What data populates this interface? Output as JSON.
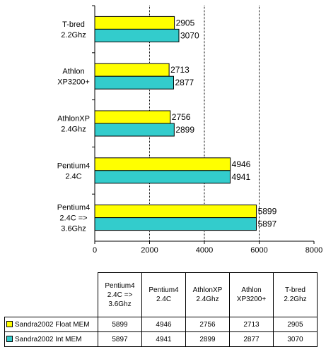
{
  "chart_data": {
    "type": "bar",
    "orientation": "horizontal",
    "categories": [
      [
        "T-bred",
        "2.2Ghz"
      ],
      [
        "Athlon",
        "XP3200+"
      ],
      [
        "AthlonXP",
        "2.4Ghz"
      ],
      [
        "Pentium4",
        "2.4C"
      ],
      [
        "Pentium4",
        "2.4C =>",
        "3.6Ghz"
      ]
    ],
    "series": [
      {
        "name": "Sandra2002 Float MEM",
        "color": "#ffff00",
        "values": [
          2905,
          2713,
          2756,
          4946,
          5899
        ]
      },
      {
        "name": "Sandra2002 Int MEM",
        "color": "#33cccc",
        "values": [
          3070,
          2877,
          2899,
          4941,
          5897
        ]
      }
    ],
    "xlim": [
      0,
      8000
    ],
    "xticks": [
      0,
      2000,
      4000,
      6000,
      8000
    ],
    "grid": "vertical dashed",
    "legend": "data table below chart"
  },
  "table": {
    "columns": [
      [
        "Pentium4",
        "2.4C =>",
        "3.6Ghz"
      ],
      [
        "Pentium4",
        "2.4C"
      ],
      [
        "AthlonXP",
        "2.4Ghz"
      ],
      [
        "Athlon",
        "XP3200+"
      ],
      [
        "T-bred",
        "2.2Ghz"
      ]
    ],
    "rows": [
      {
        "label": "Sandra2002 Float MEM",
        "color": "#ffff00",
        "values": [
          "5899",
          "4946",
          "2756",
          "2713",
          "2905"
        ]
      },
      {
        "label": "Sandra2002 Int MEM",
        "color": "#33cccc",
        "values": [
          "5897",
          "4941",
          "2899",
          "2877",
          "3070"
        ]
      }
    ]
  }
}
